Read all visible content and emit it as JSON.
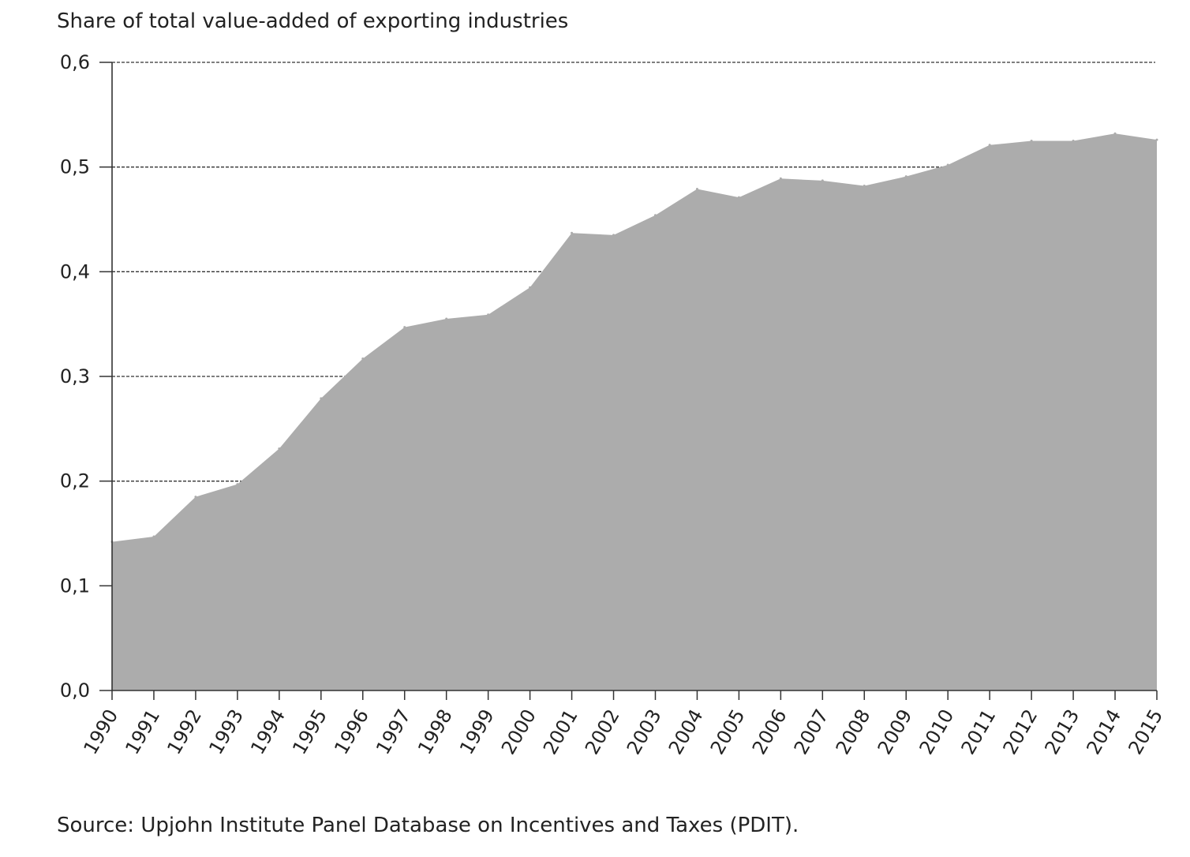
{
  "chart_data": {
    "type": "area",
    "ylabel": "Share of total value-added of exporting industries",
    "xlabel": "",
    "source": "Source: Upjohn Institute Panel Database on Incentives and Taxes (PDIT).",
    "x": [
      "1990",
      "1991",
      "1992",
      "1993",
      "1994",
      "1995",
      "1996",
      "1997",
      "1998",
      "1999",
      "2000",
      "2001",
      "2002",
      "2003",
      "2004",
      "2005",
      "2006",
      "2007",
      "2008",
      "2009",
      "2010",
      "2011",
      "2012",
      "2013",
      "2014",
      "2015"
    ],
    "series": [
      {
        "values": [
          0.142,
          0.147,
          0.185,
          0.197,
          0.231,
          0.279,
          0.317,
          0.347,
          0.355,
          0.359,
          0.385,
          0.437,
          0.435,
          0.454,
          0.479,
          0.471,
          0.489,
          0.487,
          0.482,
          0.491,
          0.502,
          0.521,
          0.525,
          0.525,
          0.532,
          0.526
        ],
        "color": "#acacac"
      }
    ],
    "ylim": [
      0,
      0.6
    ],
    "yticks": [
      "0,0",
      "0,1",
      "0,2",
      "0,3",
      "0,4",
      "0,5",
      "0,6"
    ],
    "grid": true,
    "legend": "none"
  }
}
